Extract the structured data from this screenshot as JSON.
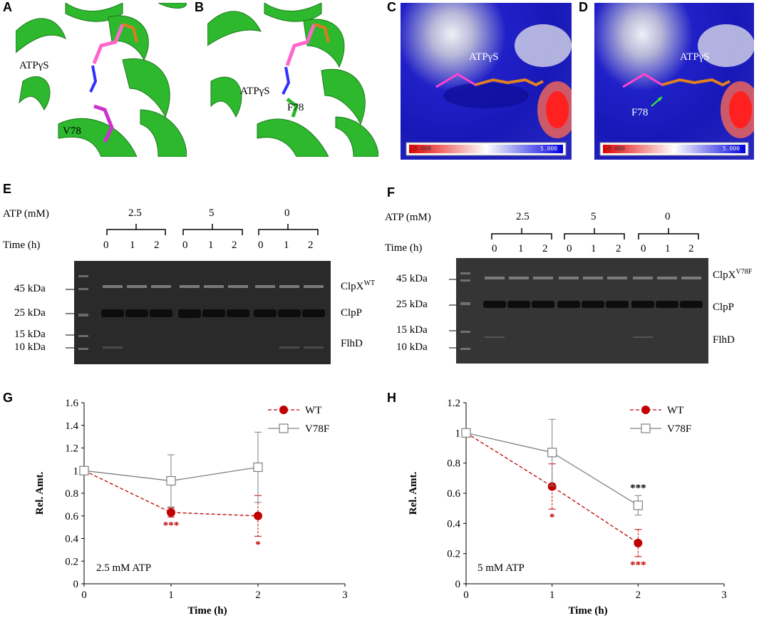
{
  "panels": {
    "A": {
      "letter": "A",
      "labels": [
        "ATPγS",
        "V78"
      ]
    },
    "B": {
      "letter": "B",
      "labels": [
        "ATPγS",
        "F78"
      ]
    },
    "C": {
      "letter": "C",
      "labels": [
        "ATPγS"
      ],
      "scale_min": "-5.000",
      "scale_max": "5.000"
    },
    "D": {
      "letter": "D",
      "labels": [
        "ATPγS",
        "F78"
      ],
      "scale_min": "-5.000",
      "scale_max": "5.000"
    }
  },
  "gel_E": {
    "letter": "E",
    "atp_label": "ATP (mM)",
    "time_label": "Time (h)",
    "atp_groups": [
      "2.5",
      "5",
      "0"
    ],
    "times": [
      "0",
      "1",
      "2",
      "0",
      "1",
      "2",
      "0",
      "1",
      "2"
    ],
    "markers": [
      "45 kDa",
      "25 kDa",
      "15 kDa",
      "10 kDa"
    ],
    "bands": {
      "clpx": "ClpX",
      "clpx_sup": "WT",
      "clpp": "ClpP",
      "flhd": "FlhD"
    }
  },
  "gel_F": {
    "letter": "F",
    "atp_label": "ATP (mM)",
    "time_label": "Time (h)",
    "atp_groups": [
      "2.5",
      "5",
      "0"
    ],
    "times": [
      "0",
      "1",
      "2",
      "0",
      "1",
      "2",
      "0",
      "1",
      "2"
    ],
    "markers": [
      "45 kDa",
      "25 kDa",
      "15 kDa",
      "10 kDa"
    ],
    "bands": {
      "clpx": "ClpX",
      "clpx_sup": "V78F",
      "clpp": "ClpP",
      "flhd": "FlhD"
    }
  },
  "colors": {
    "wt": "#c00000",
    "v78f": "#808080",
    "protein": "#2db82d",
    "surface_blue": "#1a1acc"
  },
  "chart_data": [
    {
      "id": "G",
      "letter": "G",
      "type": "line",
      "xlabel": "Time (h)",
      "ylabel": "Rel. Amt.",
      "xlim": [
        0,
        3
      ],
      "ylim": [
        0,
        1.6
      ],
      "xticks": [
        "0",
        "1",
        "2",
        "3"
      ],
      "yticks": [
        "0",
        "0.2",
        "0.4",
        "0.6",
        "0.8",
        "1",
        "1.2",
        "1.4",
        "1.6"
      ],
      "annotation": "2.5 mM ATP",
      "x": [
        0,
        1,
        2
      ],
      "series": [
        {
          "name": "WT",
          "values": [
            1.0,
            0.63,
            0.6
          ],
          "err": [
            0.01,
            0.04,
            0.18
          ],
          "sig": [
            "",
            "***",
            "*"
          ]
        },
        {
          "name": "V78F",
          "values": [
            1.0,
            0.91,
            1.03
          ],
          "err": [
            0.01,
            0.23,
            0.31
          ],
          "sig": [
            "",
            "",
            ""
          ]
        }
      ]
    },
    {
      "id": "H",
      "letter": "H",
      "type": "line",
      "xlabel": "Time (h)",
      "ylabel": "Rel. Amt.",
      "xlim": [
        0,
        3
      ],
      "ylim": [
        0,
        1.2
      ],
      "xticks": [
        "0",
        "1",
        "2",
        "3"
      ],
      "yticks": [
        "0",
        "0.2",
        "0.4",
        "0.6",
        "0.8",
        "1",
        "1.2"
      ],
      "annotation": "5 mM ATP",
      "x": [
        0,
        1,
        2
      ],
      "series": [
        {
          "name": "WT",
          "values": [
            1.0,
            0.645,
            0.27
          ],
          "err": [
            0.01,
            0.15,
            0.09
          ],
          "sig": [
            "",
            "*",
            "***"
          ]
        },
        {
          "name": "V78F",
          "values": [
            1.0,
            0.87,
            0.52
          ],
          "err": [
            0.01,
            0.22,
            0.065
          ],
          "sig": [
            "",
            "",
            "***"
          ]
        }
      ]
    }
  ]
}
